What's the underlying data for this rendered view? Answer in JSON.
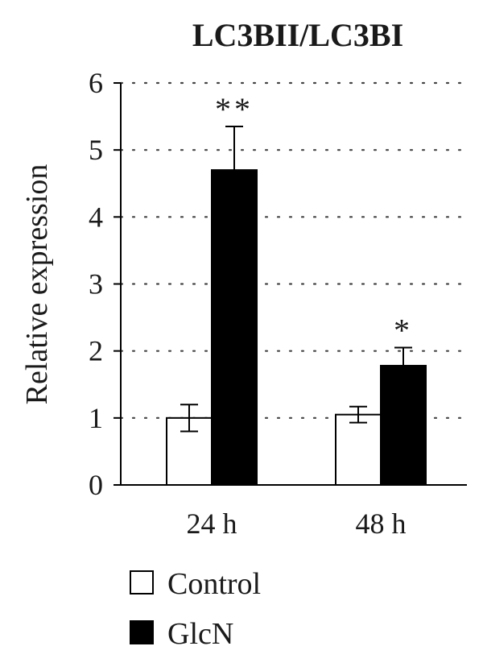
{
  "chart_data": {
    "type": "bar",
    "title": "LC3BII/LC3BI",
    "xlabel": "",
    "ylabel": "Relative expression",
    "ylim": [
      0,
      6
    ],
    "yticks": [
      "0",
      "1",
      "2",
      "3",
      "4",
      "5",
      "6"
    ],
    "grid": "horizontal dotted",
    "legend_position": "bottom-left",
    "categories": [
      "24 h",
      "48 h"
    ],
    "series": [
      {
        "name": "Control",
        "color": "#ffffff",
        "values": [
          1.0,
          1.05
        ],
        "errors": [
          0.2,
          0.12
        ],
        "significance": [
          "",
          ""
        ]
      },
      {
        "name": "GlcN",
        "color": "#000000",
        "values": [
          4.7,
          1.78
        ],
        "errors": [
          0.65,
          0.27
        ],
        "significance": [
          "**",
          "*"
        ]
      }
    ]
  }
}
